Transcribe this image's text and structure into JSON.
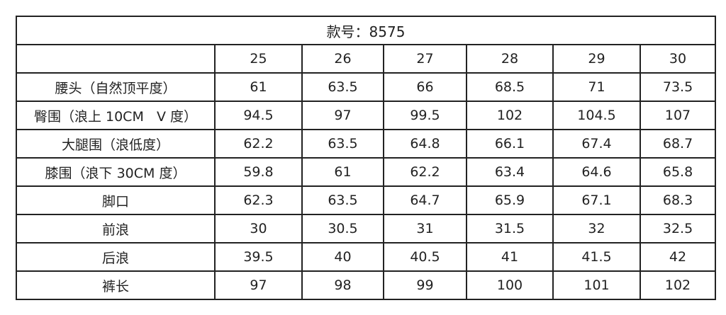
{
  "title": "款号：8575",
  "sizes": [
    "25",
    "26",
    "27",
    "28",
    "29",
    "30"
  ],
  "rows": [
    {
      "label": "腰头（自然顶平度）",
      "values": [
        "61",
        "63.5",
        "66",
        "68.5",
        "71",
        "73.5"
      ]
    },
    {
      "label": "臀围（浪上 10CM   V 度）",
      "values": [
        "94.5",
        "97",
        "99.5",
        "102",
        "104.5",
        "107"
      ]
    },
    {
      "label": "大腿围（浪低度）",
      "values": [
        "62.2",
        "63.5",
        "64.8",
        "66.1",
        "67.4",
        "68.7"
      ]
    },
    {
      "label": "膝围（浪下 30CM 度）",
      "values": [
        "59.8",
        "61",
        "62.2",
        "63.4",
        "64.6",
        "65.8"
      ]
    },
    {
      "label": "脚口",
      "values": [
        "62.3",
        "63.5",
        "64.7",
        "65.9",
        "67.1",
        "68.3"
      ]
    },
    {
      "label": "前浪",
      "values": [
        "30",
        "30.5",
        "31",
        "31.5",
        "32",
        "32.5"
      ]
    },
    {
      "label": "后浪",
      "values": [
        "39.5",
        "40",
        "40.5",
        "41",
        "41.5",
        "42"
      ]
    },
    {
      "label": "裤长",
      "values": [
        "97",
        "98",
        "99",
        "100",
        "101",
        "102"
      ]
    }
  ]
}
